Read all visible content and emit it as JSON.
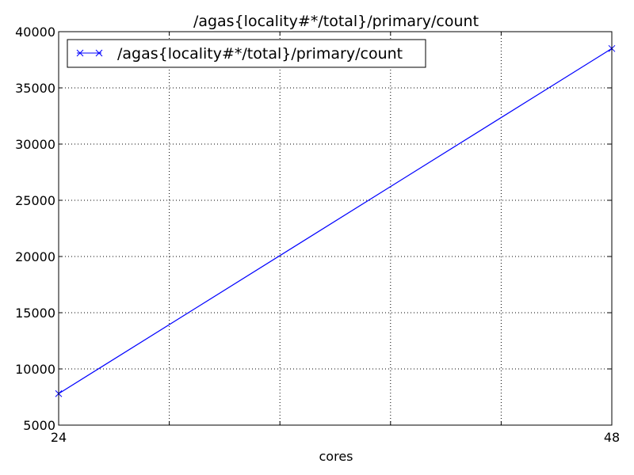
{
  "chart_data": {
    "type": "line",
    "title": "/agas{locality#*/total}/primary/count",
    "xlabel": "cores",
    "ylabel": "",
    "x_ticks": [
      "24",
      "48"
    ],
    "xlim": [
      24,
      48
    ],
    "ylim": [
      5000,
      40000
    ],
    "y_ticks": [
      "5000",
      "10000",
      "15000",
      "20000",
      "25000",
      "30000",
      "35000",
      "40000"
    ],
    "grid": true,
    "legend_position": "top-left",
    "series": [
      {
        "name": "/agas{locality#*/total}/primary/count",
        "color": "#0000ff",
        "marker": "x",
        "x": [
          24,
          48
        ],
        "y": [
          7800,
          38500
        ]
      }
    ]
  }
}
